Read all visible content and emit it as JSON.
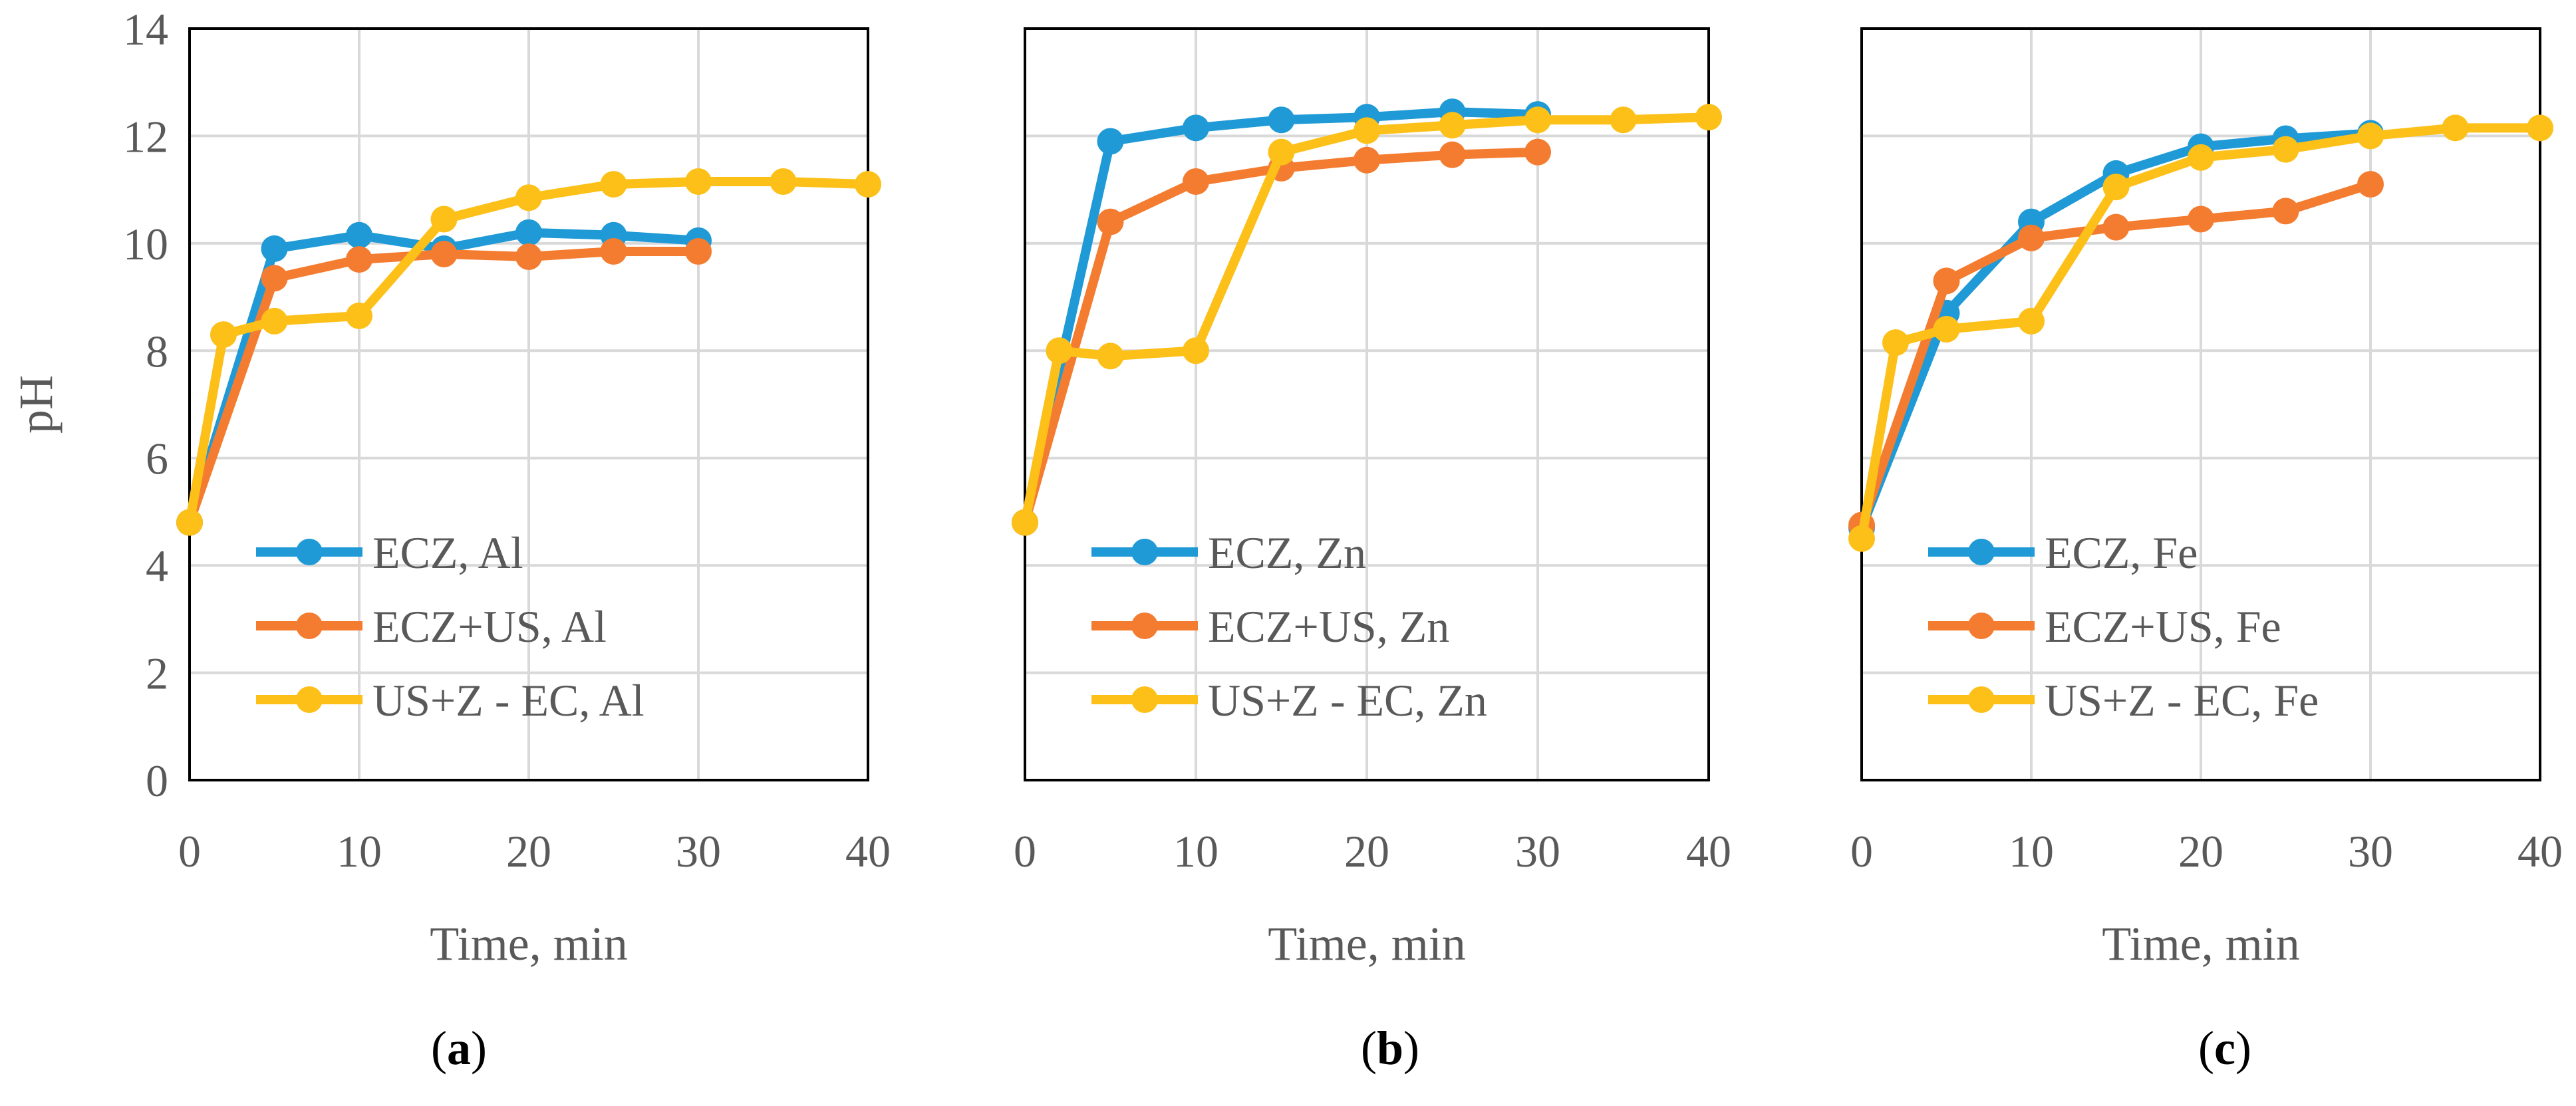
{
  "chart_data": [
    {
      "type": "line",
      "panel_label": "a",
      "xlabel": "Time, min",
      "ylabel": "pH",
      "xlim": [
        0,
        40
      ],
      "ylim": [
        0,
        14
      ],
      "x_ticks": [
        "0",
        "10",
        "20",
        "30",
        "40"
      ],
      "y_ticks": [
        "0",
        "2",
        "4",
        "6",
        "8",
        "10",
        "12",
        "14"
      ],
      "show_y_tick_labels": true,
      "grid": true,
      "legend_position": "bottom-left",
      "series": [
        {
          "name": "ECZ, Al",
          "color": "#1f9ad6",
          "x": [
            0,
            5,
            10,
            15,
            20,
            25,
            30
          ],
          "y": [
            4.8,
            9.9,
            10.15,
            9.9,
            10.2,
            10.15,
            10.05
          ]
        },
        {
          "name": "ECZ+US, Al",
          "color": "#f47c30",
          "x": [
            0,
            5,
            10,
            15,
            20,
            25,
            30
          ],
          "y": [
            4.8,
            9.35,
            9.7,
            9.8,
            9.75,
            9.85,
            9.85
          ]
        },
        {
          "name": "US+Z - EC, Al",
          "color": "#fcc018",
          "x": [
            0,
            2,
            5,
            10,
            15,
            20,
            25,
            30,
            35,
            40
          ],
          "y": [
            4.8,
            8.3,
            8.55,
            8.65,
            10.45,
            10.85,
            11.1,
            11.15,
            11.15,
            11.1
          ]
        }
      ]
    },
    {
      "type": "line",
      "panel_label": "b",
      "xlabel": "Time, min",
      "ylabel": "",
      "xlim": [
        0,
        40
      ],
      "ylim": [
        0,
        14
      ],
      "x_ticks": [
        "0",
        "10",
        "20",
        "30",
        "40"
      ],
      "y_ticks": [],
      "show_y_tick_labels": false,
      "grid": true,
      "legend_position": "bottom-left",
      "series": [
        {
          "name": "ECZ, Zn",
          "color": "#1f9ad6",
          "x": [
            0,
            5,
            10,
            15,
            20,
            25,
            30
          ],
          "y": [
            4.8,
            11.9,
            12.15,
            12.3,
            12.35,
            12.45,
            12.4
          ]
        },
        {
          "name": "ECZ+US, Zn",
          "color": "#f47c30",
          "x": [
            0,
            5,
            10,
            15,
            20,
            25,
            30
          ],
          "y": [
            4.8,
            10.4,
            11.15,
            11.4,
            11.55,
            11.65,
            11.7
          ]
        },
        {
          "name": "US+Z - EC, Zn",
          "color": "#fcc018",
          "x": [
            0,
            2,
            5,
            10,
            15,
            20,
            25,
            30,
            35,
            40
          ],
          "y": [
            4.8,
            8.0,
            7.9,
            8.0,
            11.7,
            12.1,
            12.2,
            12.3,
            12.3,
            12.35
          ]
        }
      ]
    },
    {
      "type": "line",
      "panel_label": "c",
      "xlabel": "Time, min",
      "ylabel": "",
      "xlim": [
        0,
        40
      ],
      "ylim": [
        0,
        14
      ],
      "x_ticks": [
        "0",
        "10",
        "20",
        "30",
        "40"
      ],
      "y_ticks": [],
      "show_y_tick_labels": false,
      "grid": true,
      "legend_position": "bottom-left",
      "series": [
        {
          "name": "ECZ, Fe",
          "color": "#1f9ad6",
          "x": [
            0,
            5,
            10,
            15,
            20,
            25,
            30
          ],
          "y": [
            4.7,
            8.7,
            10.4,
            11.3,
            11.8,
            11.95,
            12.05
          ]
        },
        {
          "name": "ECZ+US, Fe",
          "color": "#f47c30",
          "x": [
            0,
            5,
            10,
            15,
            20,
            25,
            30
          ],
          "y": [
            4.75,
            9.3,
            10.1,
            10.3,
            10.45,
            10.6,
            11.1
          ]
        },
        {
          "name": "US+Z - EC, Fe",
          "color": "#fcc018",
          "x": [
            0,
            2,
            5,
            10,
            15,
            20,
            25,
            30,
            35,
            40
          ],
          "y": [
            4.5,
            8.15,
            8.4,
            8.55,
            11.05,
            11.6,
            11.75,
            12.0,
            12.15,
            12.15
          ]
        }
      ]
    }
  ]
}
